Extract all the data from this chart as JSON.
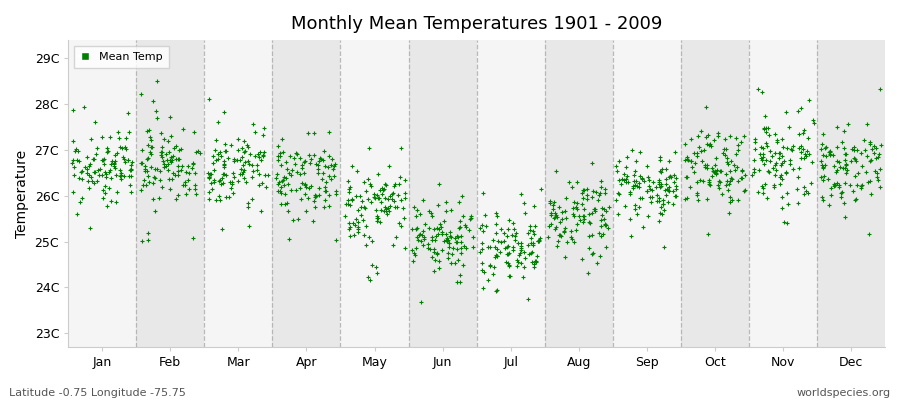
{
  "title": "Monthly Mean Temperatures 1901 - 2009",
  "ylabel": "Temperature",
  "xlabel_bottom_left": "Latitude -0.75 Longitude -75.75",
  "xlabel_bottom_right": "worldspecies.org",
  "legend_label": "Mean Temp",
  "marker_color": "#008000",
  "background_color": "#FFFFFF",
  "band_color_even": "#F5F5F5",
  "band_color_odd": "#E8E8E8",
  "dashed_line_color": "#AAAAAA",
  "ytick_labels": [
    "23C",
    "24C",
    "25C",
    "26C",
    "27C",
    "28C",
    "29C"
  ],
  "ytick_values": [
    23,
    24,
    25,
    26,
    27,
    28,
    29
  ],
  "ylim": [
    22.7,
    29.4
  ],
  "months": [
    "Jan",
    "Feb",
    "Mar",
    "Apr",
    "May",
    "Jun",
    "Jul",
    "Aug",
    "Sep",
    "Oct",
    "Nov",
    "Dec"
  ],
  "month_means": [
    26.65,
    26.65,
    26.65,
    26.45,
    25.8,
    25.1,
    24.85,
    25.55,
    26.15,
    26.6,
    26.75,
    26.7
  ],
  "month_stds": [
    0.4,
    0.5,
    0.4,
    0.4,
    0.42,
    0.38,
    0.38,
    0.38,
    0.35,
    0.42,
    0.45,
    0.42
  ],
  "n_years": 109,
  "seed": 42,
  "figsize": [
    9.0,
    4.0
  ],
  "dpi": 100
}
